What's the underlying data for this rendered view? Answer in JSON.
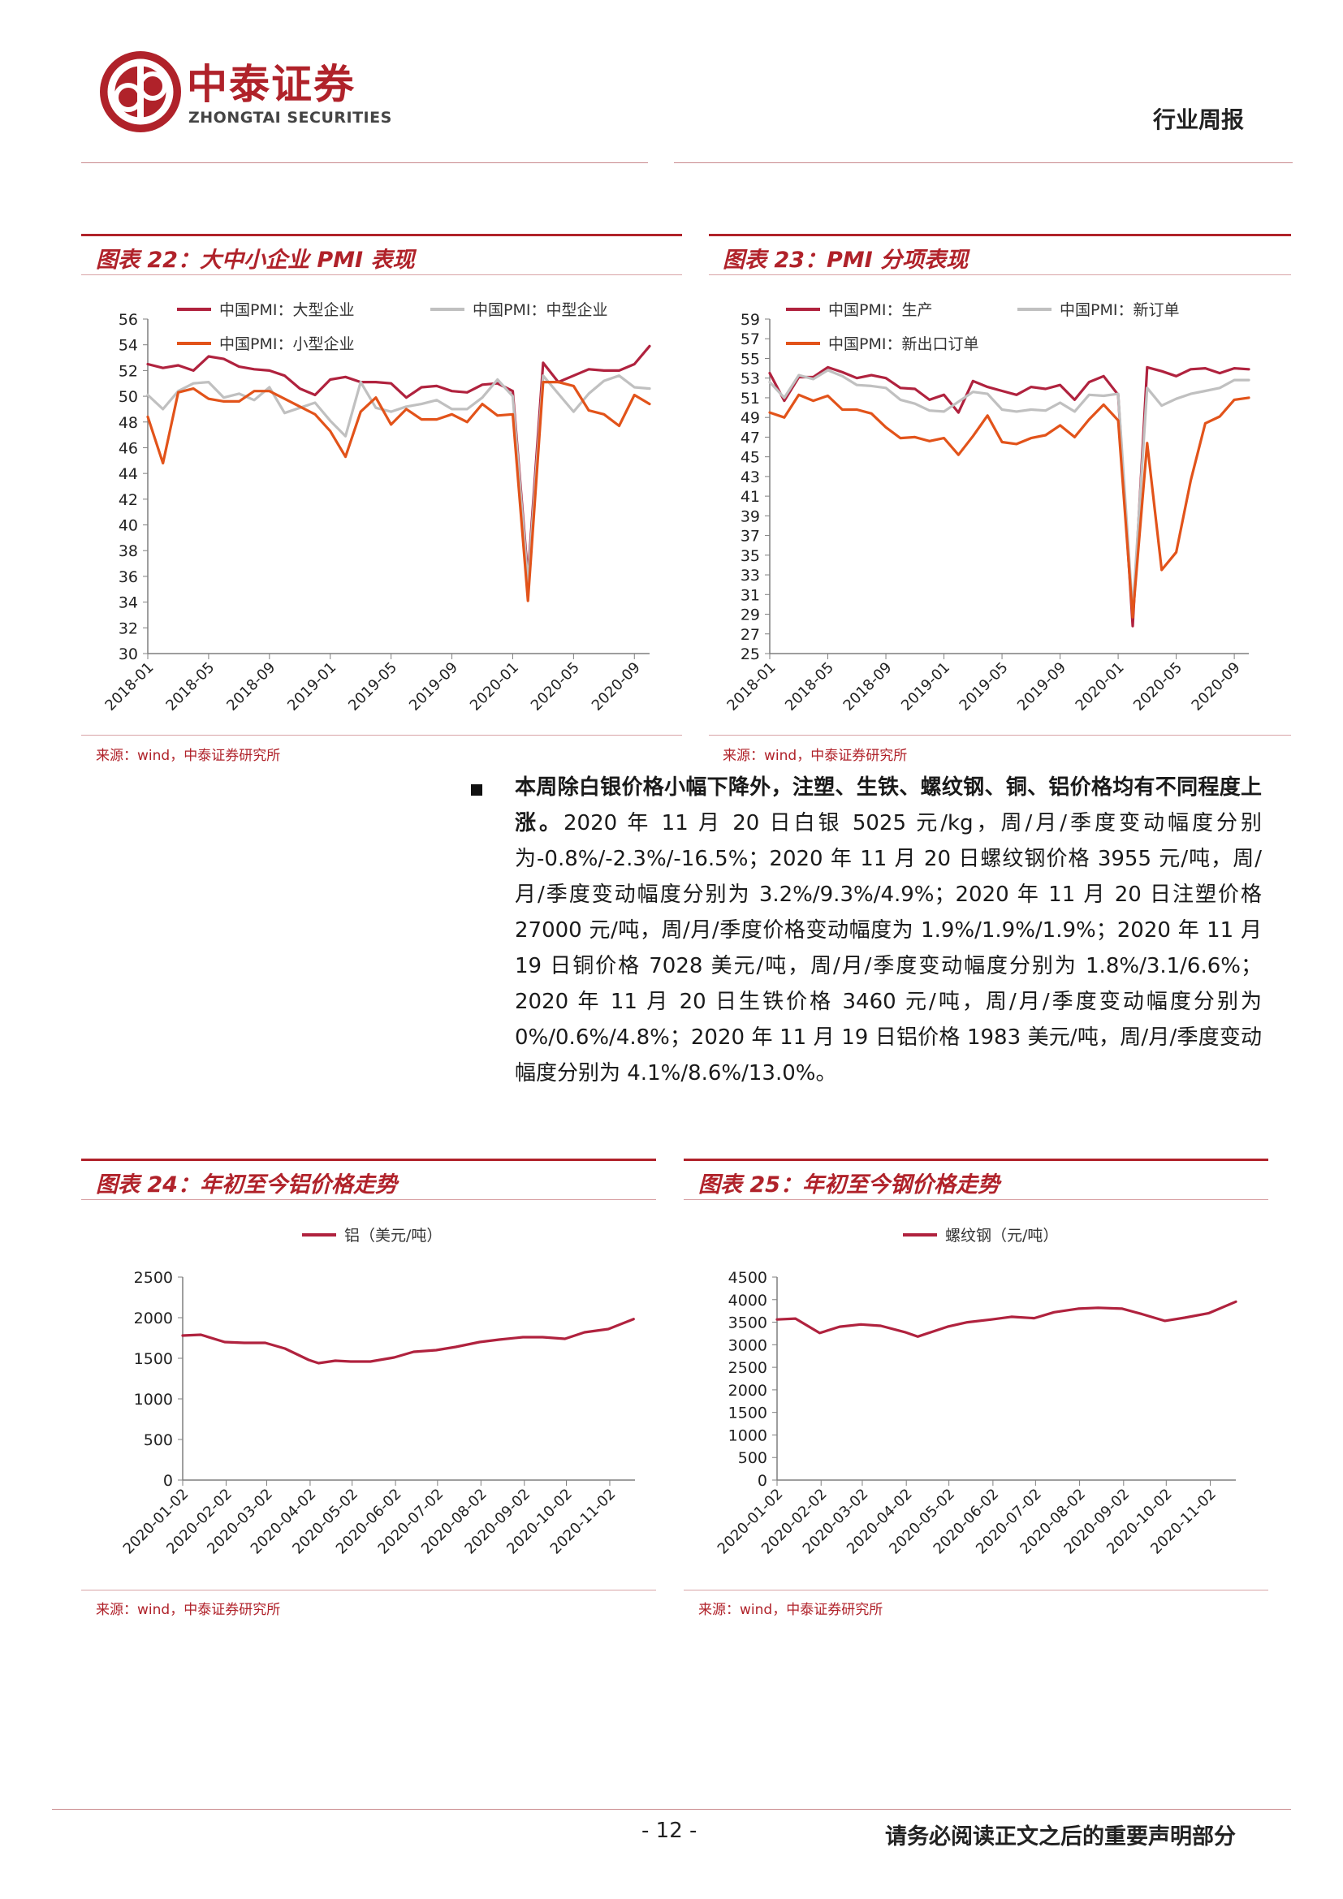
{
  "header": {
    "logo_cn": "中泰证券",
    "logo_en": "ZHONGTAI SECURITIES",
    "report_type": "行业周报"
  },
  "figures": {
    "fig22": {
      "title": "图表 22：大中小企业 PMI 表现",
      "source": "来源：wind，中泰证券研究所"
    },
    "fig23": {
      "title": "图表 23：PMI 分项表现",
      "source": "来源：wind，中泰证券研究所"
    },
    "fig24": {
      "title": "图表 24：年初至今铝价格走势",
      "source": "来源：wind，中泰证券研究所"
    },
    "fig25": {
      "title": "图表 25：年初至今钢价格走势",
      "source": "来源：wind，中泰证券研究所"
    }
  },
  "body": {
    "para_bold": "本周除白银价格小幅下降外，注塑、生铁、螺纹钢、铜、铝价格均有不同程度上涨。",
    "para_rest": "2020 年 11 月 20 日白银 5025 元/kg，周/月/季度变动幅度分别为-0.8%/-2.3%/-16.5%；2020 年 11 月 20 日螺纹钢价格 3955 元/吨，周/月/季度变动幅度分别为 3.2%/9.3%/4.9%；2020 年 11 月 20 日注塑价格 27000 元/吨，周/月/季度价格变动幅度为 1.9%/1.9%/1.9%；2020 年 11 月 19 日铜价格 7028 美元/吨，周/月/季度变动幅度分别为 1.8%/3.1/6.6%；2020 年 11 月 20 日生铁价格 3460 元/吨，周/月/季度变动幅度分别为 0%/0.6%/4.8%；2020 年 11 月 19 日铝价格 1983 美元/吨，周/月/季度变动幅度分别为 4.1%/8.6%/13.0%。"
  },
  "footer": {
    "page_number": "- 12 -",
    "disclaimer": "请务必阅读正文之后的重要声明部分"
  },
  "chart_data": [
    {
      "id": "fig22",
      "type": "line",
      "x": [
        "2018-01",
        "2018-02",
        "2018-03",
        "2018-04",
        "2018-05",
        "2018-06",
        "2018-07",
        "2018-08",
        "2018-09",
        "2018-10",
        "2018-11",
        "2018-12",
        "2019-01",
        "2019-02",
        "2019-03",
        "2019-04",
        "2019-05",
        "2019-06",
        "2019-07",
        "2019-08",
        "2019-09",
        "2019-10",
        "2019-11",
        "2019-12",
        "2020-01",
        "2020-02",
        "2020-03",
        "2020-04",
        "2020-05",
        "2020-06",
        "2020-07",
        "2020-08",
        "2020-09",
        "2020-10"
      ],
      "xticks": [
        "2018-01",
        "2018-05",
        "2018-09",
        "2019-01",
        "2019-05",
        "2019-09",
        "2020-01",
        "2020-05",
        "2020-09"
      ],
      "ylim": [
        30,
        56
      ],
      "yticks": [
        30,
        32,
        34,
        36,
        38,
        40,
        42,
        44,
        46,
        48,
        50,
        52,
        54,
        56
      ],
      "legend": "top-left",
      "series": [
        {
          "name": "中国PMI：大型企业",
          "color": "#b0223e",
          "values": [
            52.5,
            52.2,
            52.4,
            52.0,
            53.1,
            52.9,
            52.3,
            52.1,
            52.0,
            51.6,
            50.6,
            50.1,
            51.3,
            51.5,
            51.1,
            51.1,
            51.0,
            49.9,
            50.7,
            50.8,
            50.4,
            50.3,
            50.9,
            51.0,
            50.4,
            36.0,
            52.6,
            51.1,
            51.6,
            52.1,
            52.0,
            52.0,
            52.5,
            53.9
          ]
        },
        {
          "name": "中国PMI：中型企业",
          "color": "#c0c0c0",
          "values": [
            50.1,
            49.0,
            50.4,
            51.0,
            51.1,
            49.9,
            50.2,
            49.7,
            50.7,
            48.7,
            49.1,
            49.5,
            48.1,
            46.9,
            51.1,
            49.1,
            48.8,
            49.2,
            49.4,
            49.7,
            49.0,
            49.0,
            49.9,
            51.3,
            50.0,
            35.5,
            51.6,
            50.2,
            48.8,
            50.2,
            51.2,
            51.6,
            50.7,
            50.6
          ]
        },
        {
          "name": "中国PMI：小型企业",
          "color": "#e2531a",
          "values": [
            48.4,
            44.8,
            50.3,
            50.6,
            49.8,
            49.6,
            49.6,
            50.4,
            50.4,
            49.8,
            49.2,
            48.6,
            47.3,
            45.3,
            48.8,
            49.9,
            47.8,
            49.0,
            48.2,
            48.2,
            48.6,
            48.0,
            49.4,
            48.5,
            48.6,
            34.1,
            51.1,
            51.1,
            50.8,
            48.9,
            48.6,
            47.7,
            50.1,
            49.4
          ]
        }
      ]
    },
    {
      "id": "fig23",
      "type": "line",
      "x": [
        "2018-01",
        "2018-02",
        "2018-03",
        "2018-04",
        "2018-05",
        "2018-06",
        "2018-07",
        "2018-08",
        "2018-09",
        "2018-10",
        "2018-11",
        "2018-12",
        "2019-01",
        "2019-02",
        "2019-03",
        "2019-04",
        "2019-05",
        "2019-06",
        "2019-07",
        "2019-08",
        "2019-09",
        "2019-10",
        "2019-11",
        "2019-12",
        "2020-01",
        "2020-02",
        "2020-03",
        "2020-04",
        "2020-05",
        "2020-06",
        "2020-07",
        "2020-08",
        "2020-09",
        "2020-10"
      ],
      "xticks": [
        "2018-01",
        "2018-05",
        "2018-09",
        "2019-01",
        "2019-05",
        "2019-09",
        "2020-01",
        "2020-05",
        "2020-09"
      ],
      "ylim": [
        25,
        59
      ],
      "yticks": [
        25,
        27,
        29,
        31,
        33,
        35,
        37,
        39,
        41,
        43,
        45,
        47,
        49,
        51,
        53,
        55,
        57,
        59
      ],
      "legend": "top-left",
      "series": [
        {
          "name": "中国PMI：生产",
          "color": "#b0223e",
          "values": [
            53.5,
            50.7,
            53.1,
            53.1,
            54.1,
            53.6,
            53.0,
            53.3,
            53.0,
            52.0,
            51.9,
            50.8,
            51.3,
            49.5,
            52.7,
            52.1,
            51.7,
            51.3,
            52.1,
            51.9,
            52.3,
            50.8,
            52.6,
            53.2,
            51.3,
            27.8,
            54.1,
            53.7,
            53.2,
            53.9,
            54.0,
            53.5,
            54.0,
            53.9
          ]
        },
        {
          "name": "中国PMI：新订单",
          "color": "#c0c0c0",
          "values": [
            52.6,
            51.0,
            53.3,
            52.9,
            53.8,
            53.2,
            52.3,
            52.2,
            52.0,
            50.8,
            50.4,
            49.7,
            49.6,
            50.6,
            51.6,
            51.4,
            49.8,
            49.6,
            49.8,
            49.7,
            50.5,
            49.6,
            51.3,
            51.2,
            51.4,
            29.3,
            52.0,
            50.2,
            50.9,
            51.4,
            51.7,
            52.0,
            52.8,
            52.8
          ]
        },
        {
          "name": "中国PMI：新出口订单",
          "color": "#e2531a",
          "values": [
            49.5,
            49.0,
            51.3,
            50.7,
            51.2,
            49.8,
            49.8,
            49.4,
            48.0,
            46.9,
            47.0,
            46.6,
            46.9,
            45.2,
            47.1,
            49.2,
            46.5,
            46.3,
            46.9,
            47.2,
            48.2,
            47.0,
            48.8,
            50.3,
            48.7,
            28.7,
            46.4,
            33.5,
            35.3,
            42.6,
            48.4,
            49.1,
            50.8,
            51.0
          ]
        }
      ]
    },
    {
      "id": "fig24",
      "type": "line",
      "xticks": [
        "2020-01-02",
        "2020-02-02",
        "2020-03-02",
        "2020-04-02",
        "2020-05-02",
        "2020-06-02",
        "2020-07-02",
        "2020-08-02",
        "2020-09-02",
        "2020-10-02",
        "2020-11-02"
      ],
      "ylim": [
        0,
        2500
      ],
      "yticks": [
        0,
        500,
        1000,
        1500,
        2000,
        2500
      ],
      "legend": "top-center",
      "series": [
        {
          "name": "铝（美元/吨）",
          "color": "#b0223e",
          "dates": [
            "2020-01-02",
            "2020-01-15",
            "2020-02-01",
            "2020-02-15",
            "2020-03-01",
            "2020-03-15",
            "2020-04-01",
            "2020-04-08",
            "2020-04-20",
            "2020-05-01",
            "2020-05-15",
            "2020-06-01",
            "2020-06-15",
            "2020-07-01",
            "2020-07-15",
            "2020-08-01",
            "2020-08-15",
            "2020-09-01",
            "2020-09-15",
            "2020-10-01",
            "2020-10-15",
            "2020-11-01",
            "2020-11-19"
          ],
          "values": [
            1780,
            1790,
            1700,
            1690,
            1690,
            1620,
            1480,
            1440,
            1470,
            1460,
            1460,
            1510,
            1580,
            1600,
            1640,
            1700,
            1730,
            1760,
            1760,
            1740,
            1820,
            1860,
            1983
          ]
        }
      ]
    },
    {
      "id": "fig25",
      "type": "line",
      "xticks": [
        "2020-01-02",
        "2020-02-02",
        "2020-03-02",
        "2020-04-02",
        "2020-05-02",
        "2020-06-02",
        "2020-07-02",
        "2020-08-02",
        "2020-09-02",
        "2020-10-02",
        "2020-11-02"
      ],
      "ylim": [
        0,
        4500
      ],
      "yticks": [
        0,
        500,
        1000,
        1500,
        2000,
        2500,
        3000,
        3500,
        4000,
        4500
      ],
      "legend": "top-center",
      "series": [
        {
          "name": "螺纹钢（元/吨）",
          "color": "#b0223e",
          "dates": [
            "2020-01-02",
            "2020-01-15",
            "2020-02-01",
            "2020-02-15",
            "2020-03-01",
            "2020-03-15",
            "2020-04-01",
            "2020-04-10",
            "2020-05-01",
            "2020-05-15",
            "2020-06-01",
            "2020-06-15",
            "2020-07-01",
            "2020-07-15",
            "2020-08-01",
            "2020-08-15",
            "2020-09-01",
            "2020-09-15",
            "2020-10-01",
            "2020-10-15",
            "2020-11-01",
            "2020-11-20"
          ],
          "values": [
            3560,
            3580,
            3260,
            3400,
            3450,
            3420,
            3280,
            3180,
            3400,
            3500,
            3560,
            3620,
            3590,
            3720,
            3800,
            3820,
            3800,
            3680,
            3530,
            3600,
            3700,
            3955
          ]
        }
      ]
    }
  ]
}
